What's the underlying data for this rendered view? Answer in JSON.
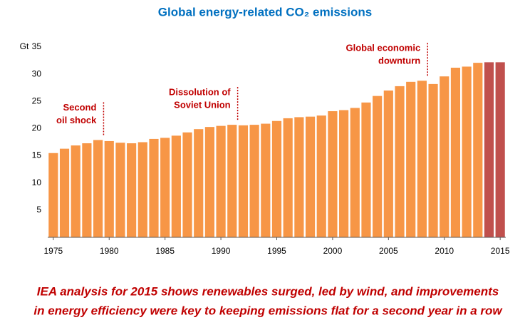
{
  "chart_data": {
    "type": "bar",
    "title": "Global energy-related CO₂ emissions",
    "y_unit": "Gt",
    "x": [
      1975,
      1976,
      1977,
      1978,
      1979,
      1980,
      1981,
      1982,
      1983,
      1984,
      1985,
      1986,
      1987,
      1988,
      1989,
      1990,
      1991,
      1992,
      1993,
      1994,
      1995,
      1996,
      1997,
      1998,
      1999,
      2000,
      2001,
      2002,
      2003,
      2004,
      2005,
      2006,
      2007,
      2008,
      2009,
      2010,
      2011,
      2012,
      2013,
      2014,
      2015
    ],
    "values": [
      15.5,
      16.3,
      16.9,
      17.3,
      17.9,
      17.7,
      17.4,
      17.3,
      17.5,
      18.1,
      18.3,
      18.7,
      19.3,
      19.9,
      20.3,
      20.5,
      20.7,
      20.6,
      20.7,
      20.9,
      21.4,
      21.9,
      22.1,
      22.2,
      22.4,
      23.2,
      23.4,
      23.8,
      24.8,
      26.0,
      27.0,
      27.8,
      28.6,
      28.8,
      28.2,
      29.6,
      31.2,
      31.4,
      32.1,
      32.2,
      32.2
    ],
    "colors": [
      "#f79646",
      "#f79646",
      "#f79646",
      "#f79646",
      "#f79646",
      "#f79646",
      "#f79646",
      "#f79646",
      "#f79646",
      "#f79646",
      "#f79646",
      "#f79646",
      "#f79646",
      "#f79646",
      "#f79646",
      "#f79646",
      "#f79646",
      "#f79646",
      "#f79646",
      "#f79646",
      "#f79646",
      "#f79646",
      "#f79646",
      "#f79646",
      "#f79646",
      "#f79646",
      "#f79646",
      "#f79646",
      "#f79646",
      "#f79646",
      "#f79646",
      "#f79646",
      "#f79646",
      "#f79646",
      "#f79646",
      "#f79646",
      "#f79646",
      "#f79646",
      "#f79646",
      "#c0504d",
      "#c0504d"
    ],
    "xlim": [
      1974.5,
      2015.5
    ],
    "xticks": [
      1975,
      1980,
      1985,
      1990,
      1995,
      2000,
      2005,
      2010,
      2015
    ],
    "ylim": [
      0,
      35
    ],
    "yticks": [
      5,
      10,
      15,
      20,
      25,
      30,
      35
    ],
    "grid": false,
    "annotations": [
      {
        "lines": [
          "Second",
          "oil shock"
        ],
        "x": 1979.5
      },
      {
        "lines": [
          "Dissolution of",
          "Soviet Union"
        ],
        "x": 1991.5
      },
      {
        "lines": [
          "Global economic",
          "downturn"
        ],
        "x": 2008.5
      }
    ],
    "caption": [
      "IEA analysis for 2015 shows renewables surged, led by wind, and improvements",
      "in energy efficiency were key to keeping emissions flat for a second year in a row"
    ]
  }
}
